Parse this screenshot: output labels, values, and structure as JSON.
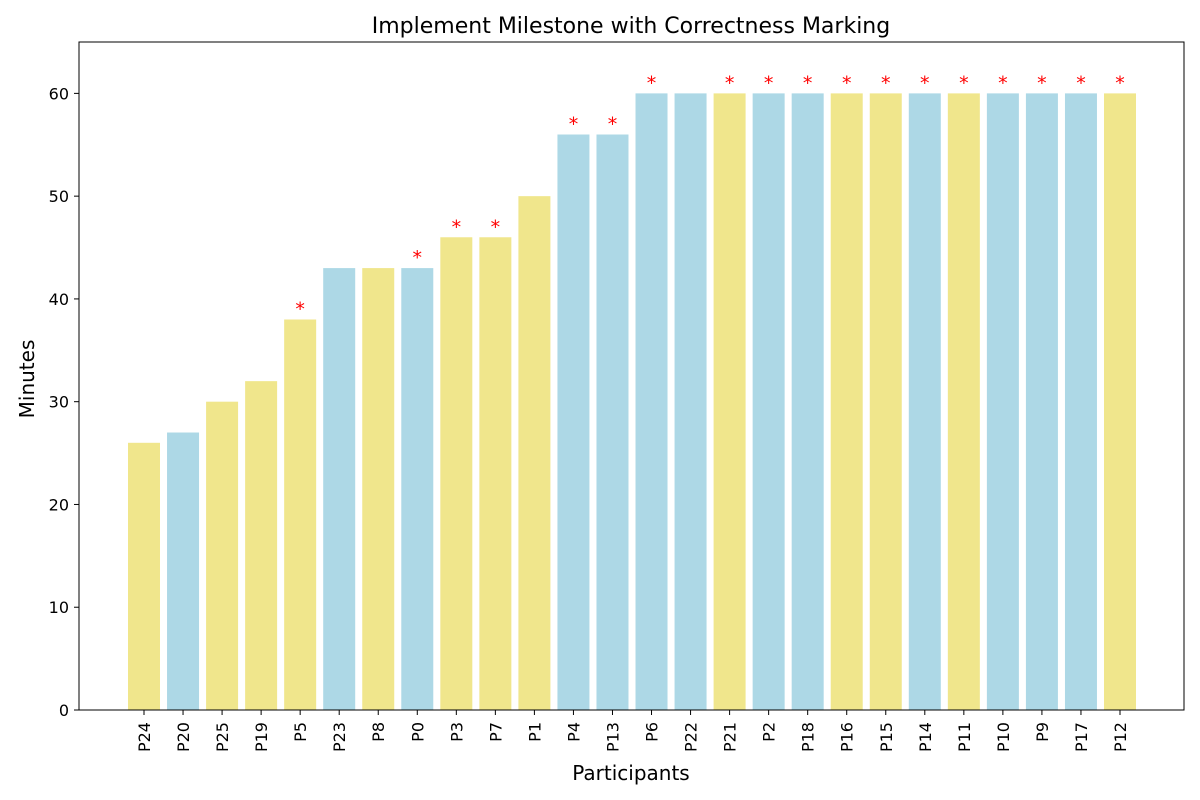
{
  "chart_data": {
    "type": "bar",
    "title": "Implement Milestone with Correctness Marking",
    "xlabel": "Participants",
    "ylabel": "Minutes",
    "ylim": [
      0,
      65
    ],
    "yticks": [
      0,
      10,
      20,
      30,
      40,
      50,
      60
    ],
    "grid": false,
    "legend": "none",
    "marker_symbol": "*",
    "colors": {
      "yellow": "#f0e68c",
      "blue": "#add8e6",
      "marker": "#ff0000"
    },
    "bars": [
      {
        "participant": "P24",
        "minutes": 26,
        "color": "yellow",
        "marked": false
      },
      {
        "participant": "P20",
        "minutes": 27,
        "color": "blue",
        "marked": false
      },
      {
        "participant": "P25",
        "minutes": 30,
        "color": "yellow",
        "marked": false
      },
      {
        "participant": "P19",
        "minutes": 32,
        "color": "yellow",
        "marked": false
      },
      {
        "participant": "P5",
        "minutes": 38,
        "color": "yellow",
        "marked": true
      },
      {
        "participant": "P23",
        "minutes": 43,
        "color": "blue",
        "marked": false
      },
      {
        "participant": "P8",
        "minutes": 43,
        "color": "yellow",
        "marked": false
      },
      {
        "participant": "P0",
        "minutes": 43,
        "color": "blue",
        "marked": true
      },
      {
        "participant": "P3",
        "minutes": 46,
        "color": "yellow",
        "marked": true
      },
      {
        "participant": "P7",
        "minutes": 46,
        "color": "yellow",
        "marked": true
      },
      {
        "participant": "P1",
        "minutes": 50,
        "color": "yellow",
        "marked": false
      },
      {
        "participant": "P4",
        "minutes": 56,
        "color": "blue",
        "marked": true
      },
      {
        "participant": "P13",
        "minutes": 56,
        "color": "blue",
        "marked": true
      },
      {
        "participant": "P6",
        "minutes": 60,
        "color": "blue",
        "marked": true
      },
      {
        "participant": "P22",
        "minutes": 60,
        "color": "blue",
        "marked": false
      },
      {
        "participant": "P21",
        "minutes": 60,
        "color": "yellow",
        "marked": true
      },
      {
        "participant": "P2",
        "minutes": 60,
        "color": "blue",
        "marked": true
      },
      {
        "participant": "P18",
        "minutes": 60,
        "color": "blue",
        "marked": true
      },
      {
        "participant": "P16",
        "minutes": 60,
        "color": "yellow",
        "marked": true
      },
      {
        "participant": "P15",
        "minutes": 60,
        "color": "yellow",
        "marked": true
      },
      {
        "participant": "P14",
        "minutes": 60,
        "color": "blue",
        "marked": true
      },
      {
        "participant": "P11",
        "minutes": 60,
        "color": "yellow",
        "marked": true
      },
      {
        "participant": "P10",
        "minutes": 60,
        "color": "blue",
        "marked": true
      },
      {
        "participant": "P9",
        "minutes": 60,
        "color": "blue",
        "marked": true
      },
      {
        "participant": "P17",
        "minutes": 60,
        "color": "blue",
        "marked": true
      },
      {
        "participant": "P12",
        "minutes": 60,
        "color": "yellow",
        "marked": true
      }
    ]
  }
}
